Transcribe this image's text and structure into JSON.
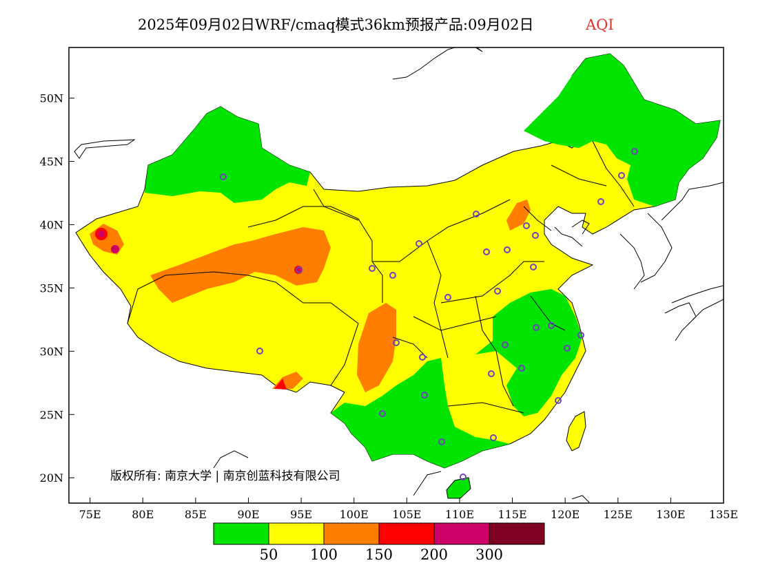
{
  "title": {
    "main": "2025年09月02日WRF/cmaq模式36km预报产品:09月02日",
    "pollutant": "AQI"
  },
  "map": {
    "lon_range": [
      73,
      135
    ],
    "lat_range": [
      18,
      54
    ],
    "x_ticks": [
      "75E",
      "80E",
      "85E",
      "90E",
      "95E",
      "100E",
      "105E",
      "110E",
      "115E",
      "120E",
      "125E",
      "130E",
      "135E"
    ],
    "y_ticks": [
      "20N",
      "25N",
      "30N",
      "35N",
      "40N",
      "45N",
      "50N"
    ],
    "copyright": "版权所有: 南京大学 | 南京创蓝科技有限公司"
  },
  "legend": {
    "colors": [
      "#00e400",
      "#ffff00",
      "#ff7e00",
      "#ff0000",
      "#cc0066",
      "#7e0023"
    ],
    "labels": [
      "50",
      "100",
      "150",
      "200",
      "300"
    ]
  },
  "colors": {
    "good": "#00e400",
    "moderate": "#ffff00",
    "sensitive": "#ff7e00",
    "unhealthy": "#ff0000",
    "very_unhealthy": "#cc0066",
    "hazardous": "#7e0023",
    "station_marker": "#7040c0"
  }
}
